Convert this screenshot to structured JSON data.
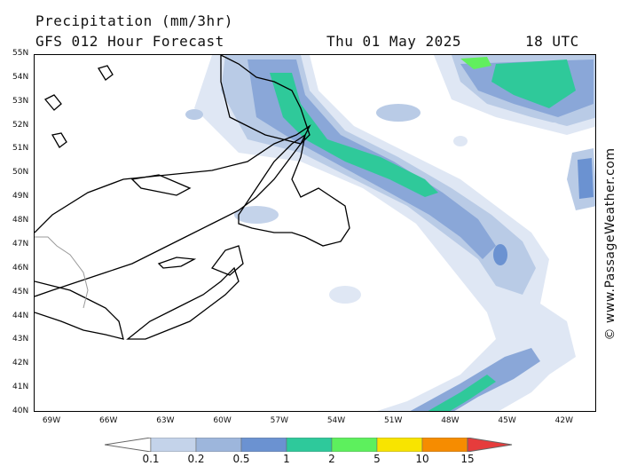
{
  "header": {
    "title": "Precipitation (mm/3hr)",
    "model": "GFS 012 Hour Forecast",
    "date": "Thu 01 May 2025",
    "time": "18 UTC"
  },
  "credit": "© www.PassageWeather.com",
  "axes": {
    "lat_labels": [
      "55N",
      "54N",
      "53N",
      "52N",
      "51N",
      "50N",
      "49N",
      "48N",
      "47N",
      "46N",
      "45N",
      "44N",
      "43N",
      "42N",
      "41N",
      "40N"
    ],
    "lon_labels": [
      "69W",
      "66W",
      "63W",
      "60W",
      "57W",
      "54W",
      "51W",
      "48W",
      "45W",
      "42W"
    ]
  },
  "legend": {
    "labels": [
      "0.1",
      "0.2",
      "0.5",
      "1",
      "2",
      "5",
      "10",
      "15"
    ],
    "colors": [
      "#e6edf7",
      "#c4d3ea",
      "#9db6dc",
      "#6b92d1",
      "#2ec99b",
      "#5df05d",
      "#f8e400",
      "#f68c00",
      "#e63c3c"
    ]
  },
  "palette": {
    "land_outline": "#000000",
    "border": "#999999",
    "precip_light": "#dfe7f4",
    "precip_mid": "#b9cbe6",
    "precip_blue": "#8aa7d8",
    "precip_dark": "#5f88cf",
    "precip_green": "#2fc99a",
    "precip_bright": "#61ef5e"
  }
}
